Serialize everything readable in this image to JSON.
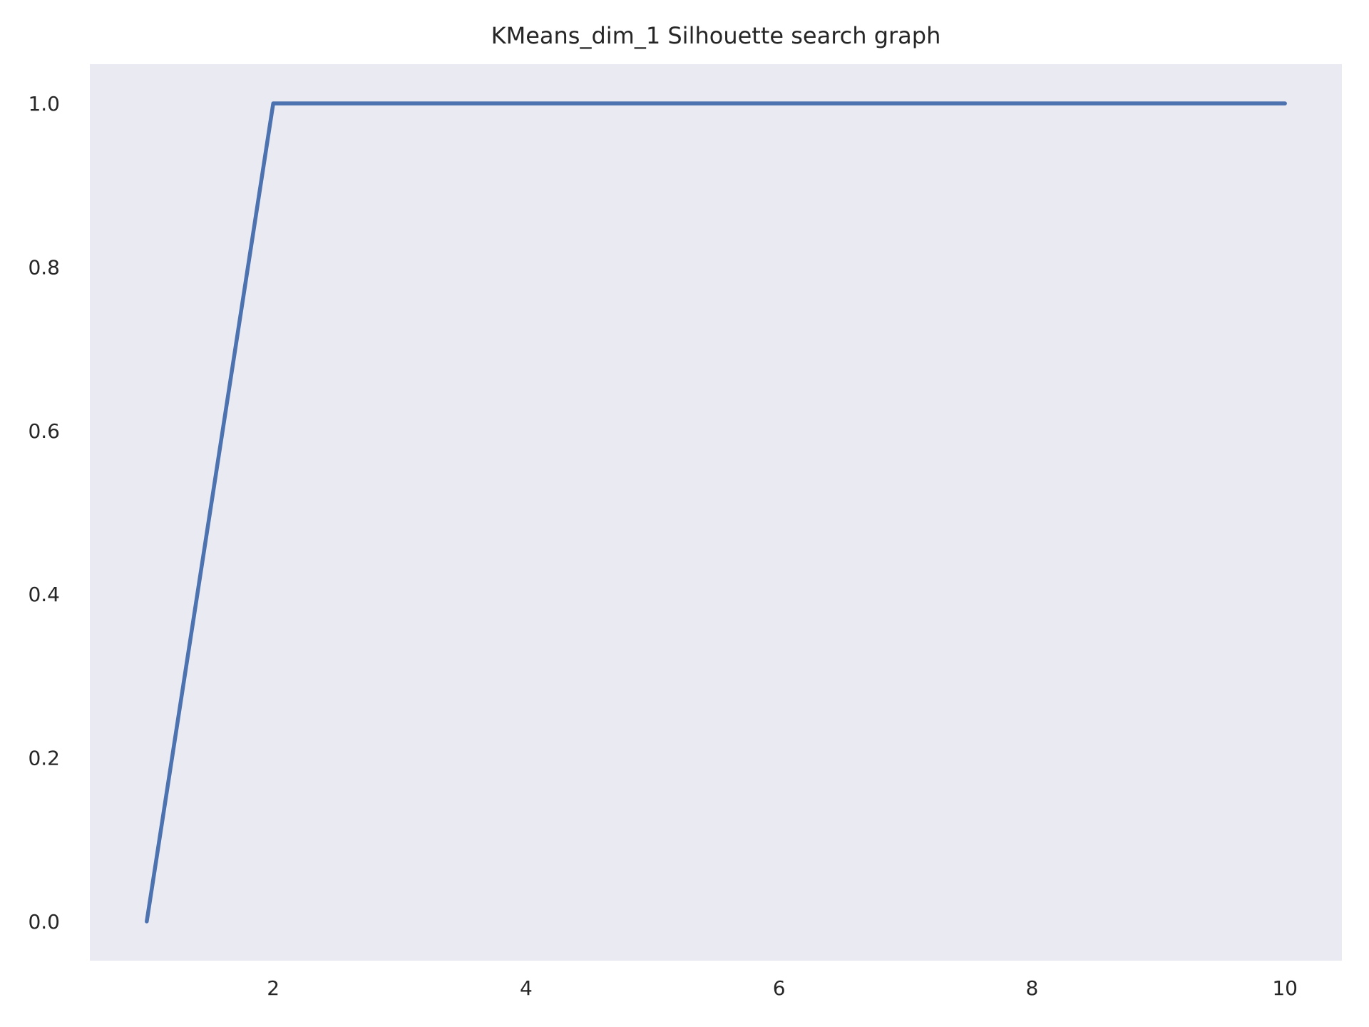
{
  "chart_data": {
    "type": "line",
    "title": "KMeans_dim_1 Silhouette search graph",
    "xlabel": "",
    "ylabel": "",
    "x": [
      1,
      2,
      3,
      4,
      5,
      6,
      7,
      8,
      9,
      10
    ],
    "series": [
      {
        "values": [
          0.0,
          1.0,
          1.0,
          1.0,
          1.0,
          1.0,
          1.0,
          1.0,
          1.0,
          1.0
        ],
        "color": "#4c72b0"
      }
    ],
    "xlim": [
      0.55,
      10.45
    ],
    "ylim": [
      -0.048,
      1.048
    ],
    "xticks": [
      2,
      4,
      6,
      8,
      10
    ],
    "xtick_labels": [
      "2",
      "4",
      "6",
      "8",
      "10"
    ],
    "yticks": [
      0.0,
      0.2,
      0.4,
      0.6,
      0.8,
      1.0
    ],
    "ytick_labels": [
      "0.0",
      "0.2",
      "0.4",
      "0.6",
      "0.8",
      "1.0"
    ],
    "grid": false,
    "legend": "none",
    "colors": {
      "plot_background": "#eaeaf2",
      "line": "#4c72b0",
      "text": "#262626"
    }
  }
}
